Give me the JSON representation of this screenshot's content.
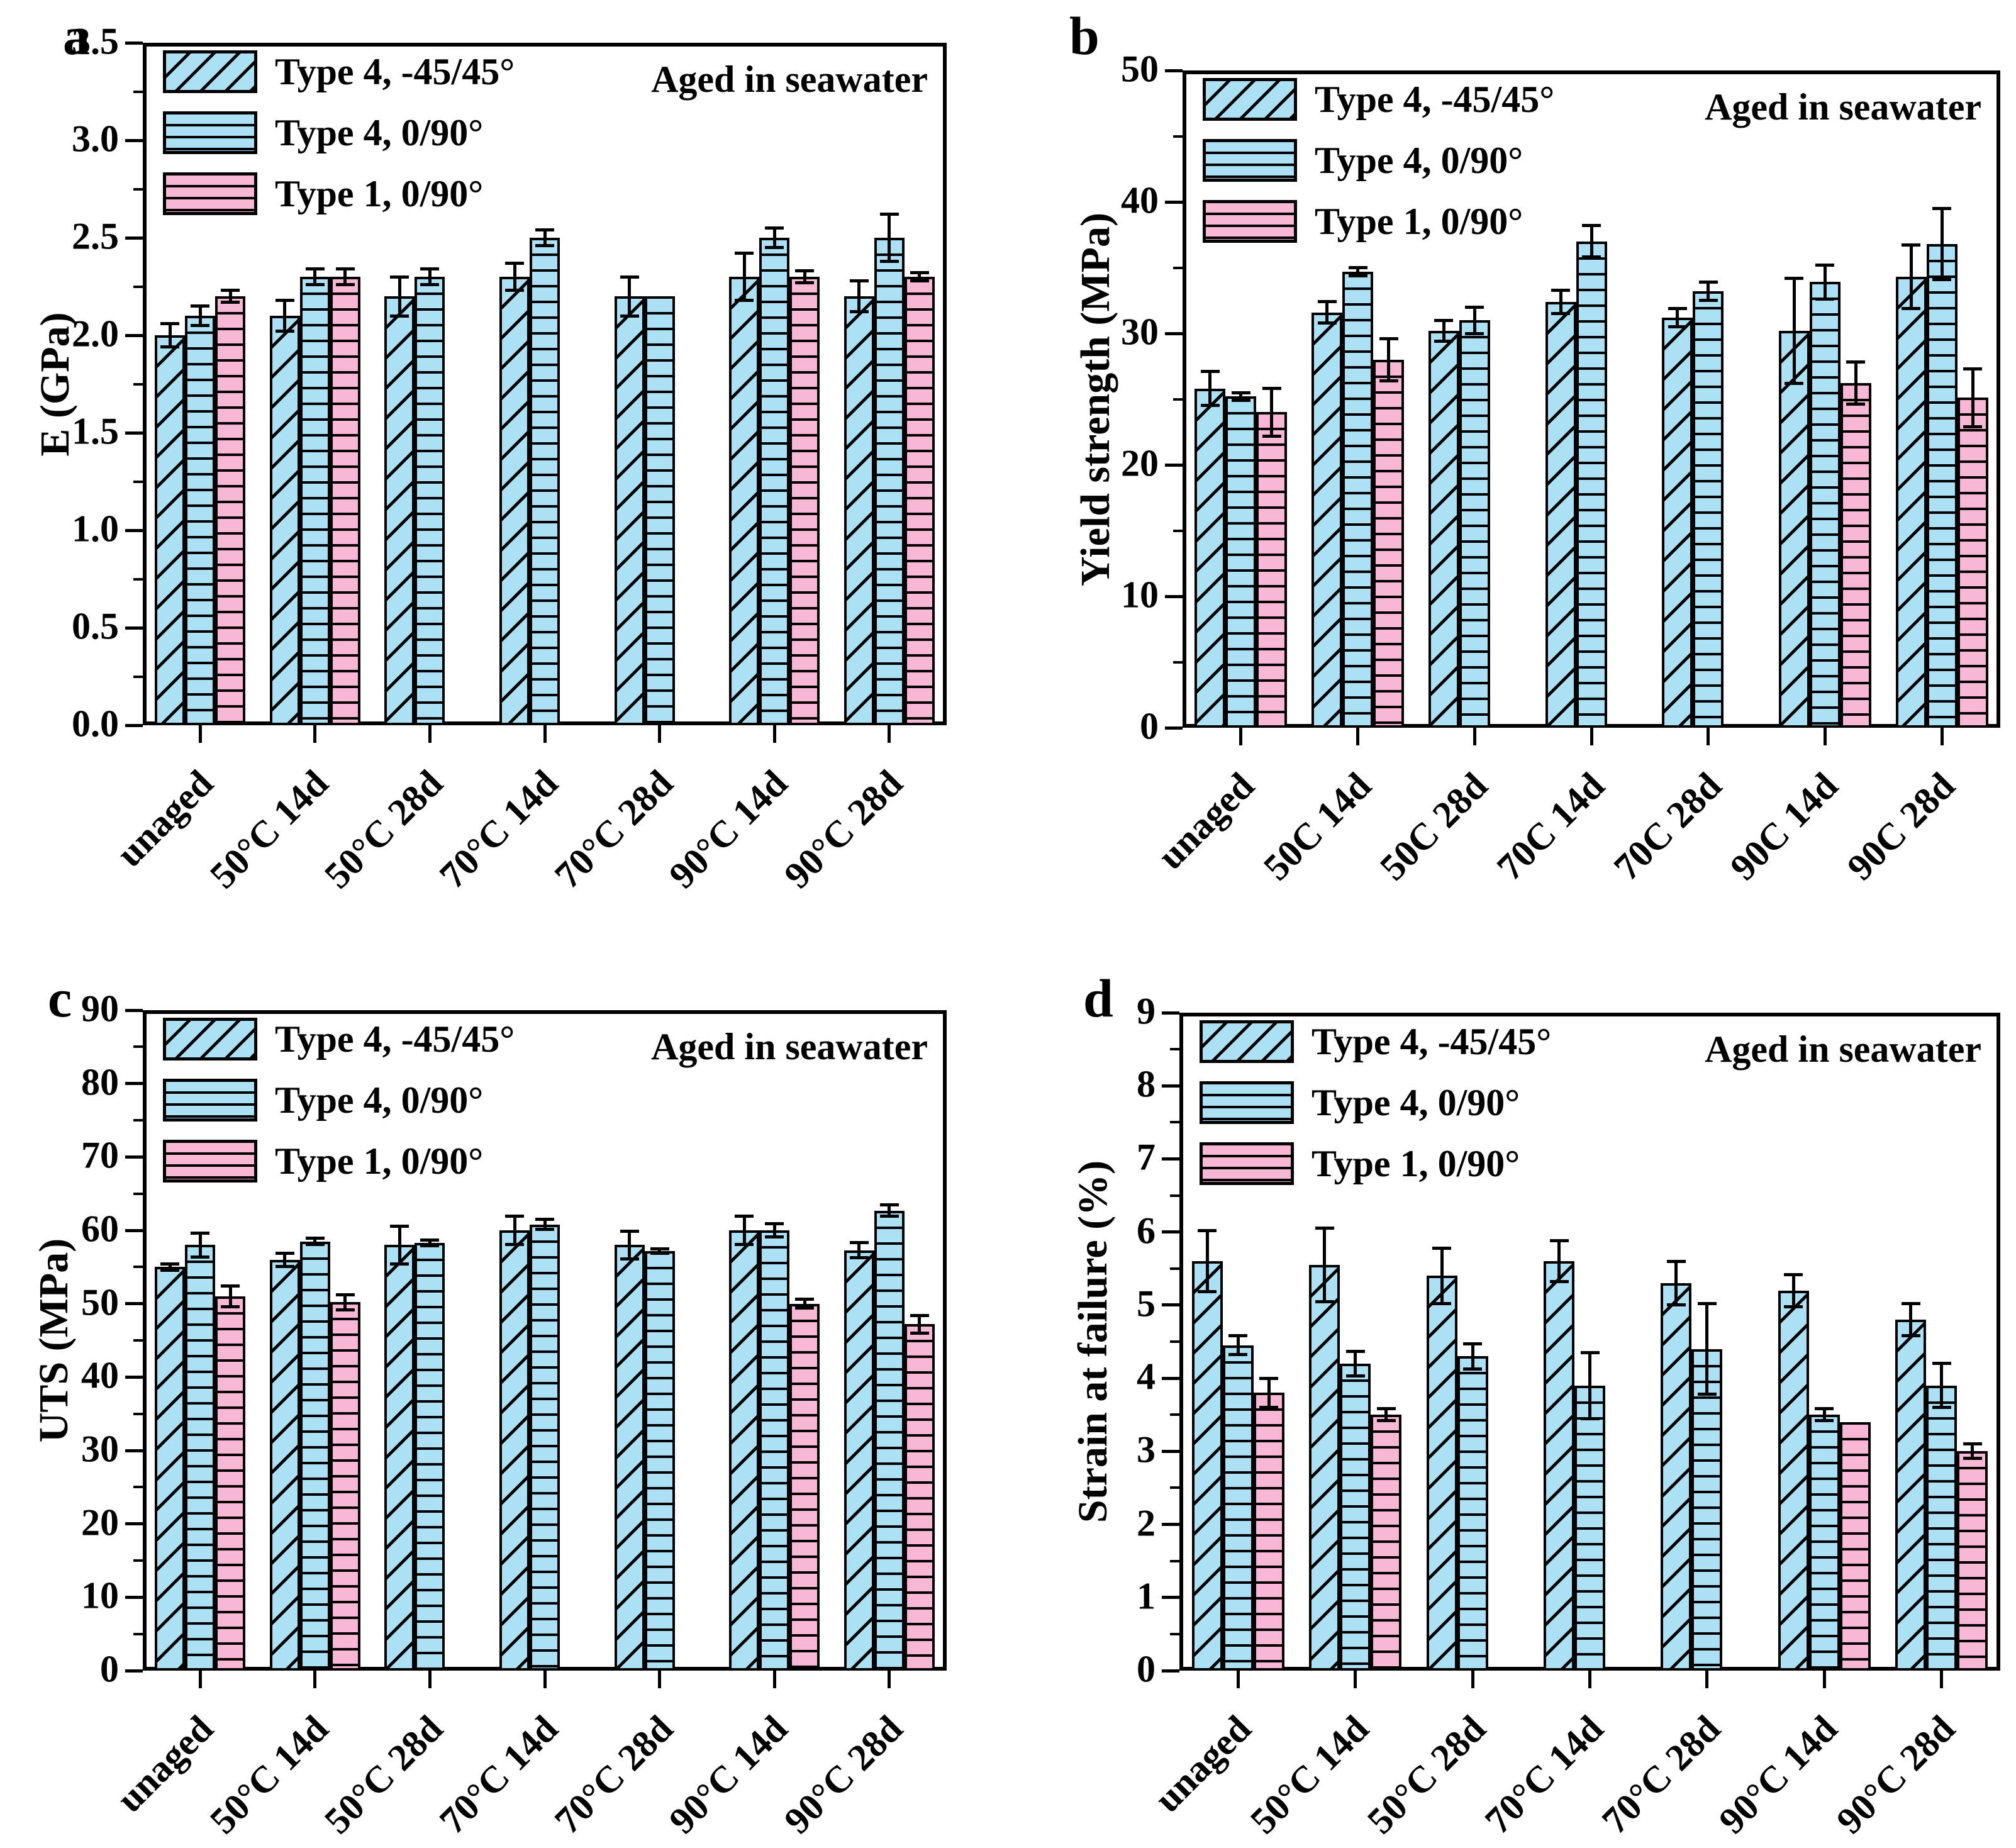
{
  "page": {
    "background": "#ffffff"
  },
  "colors": {
    "type4_blue": "#ACE0F4",
    "type1_pink": "#F8B7D4",
    "outline": "#000000"
  },
  "annotation_label": "Aged in seawater",
  "legend_labels": [
    "Type 4, -45/45°",
    "Type 4, 0/90°",
    "Type 1, 0/90°"
  ],
  "chart_data": [
    {
      "id": "a",
      "letter": "a",
      "type": "bar",
      "title": "",
      "xlabel": "",
      "ylabel": "E (GPa)",
      "ylim": [
        0,
        3.5
      ],
      "ytick_step": 0.5,
      "minor_step": 0.25,
      "ytick_decimals": 1,
      "grid": false,
      "legend_position": "top-left",
      "annotation": "Aged in seawater",
      "categories": [
        "unaged",
        "50°C 14d",
        "50°C 28d",
        "70°C 14d",
        "70°C 28d",
        "90°C 14d",
        "90°C 28d"
      ],
      "series": [
        {
          "name": "Type 4, -45/45°",
          "hatch": "diagonal",
          "fill": "blue",
          "values": [
            2.0,
            2.1,
            2.2,
            2.3,
            2.2,
            2.3,
            2.2
          ],
          "errors": [
            0.06,
            0.08,
            0.1,
            0.07,
            0.1,
            0.12,
            0.08
          ]
        },
        {
          "name": "Type 4, 0/90°",
          "hatch": "horizontal",
          "fill": "blue",
          "values": [
            2.1,
            2.3,
            2.3,
            2.5,
            2.2,
            2.5,
            2.5
          ],
          "errors": [
            0.05,
            0.04,
            0.04,
            0.04,
            0,
            0.05,
            0.12
          ]
        },
        {
          "name": "Type 1, 0/90°",
          "hatch": "horizontal",
          "fill": "pink",
          "values": [
            2.2,
            2.3,
            null,
            null,
            null,
            2.3,
            2.3
          ],
          "errors": [
            0.03,
            0.04,
            null,
            null,
            null,
            0.03,
            0.02
          ]
        }
      ]
    },
    {
      "id": "b",
      "letter": "b",
      "type": "bar",
      "title": "",
      "xlabel": "",
      "ylabel": "Yield strength (MPa)",
      "ylim": [
        0,
        50
      ],
      "ytick_step": 10,
      "minor_step": 5,
      "ytick_decimals": 0,
      "grid": false,
      "legend_position": "top-left",
      "annotation": "Aged in seawater",
      "categories": [
        "unaged",
        "50C 14d",
        "50C 28d",
        "70C 14d",
        "70C 28d",
        "90C 14d",
        "90C 28d"
      ],
      "series": [
        {
          "name": "Type 4, -45/45°",
          "hatch": "diagonal",
          "fill": "blue",
          "values": [
            25.8,
            31.6,
            30.2,
            32.4,
            31.2,
            30.2,
            34.3
          ],
          "errors": [
            1.3,
            0.8,
            0.8,
            0.9,
            0.7,
            4.0,
            2.4
          ]
        },
        {
          "name": "Type 4, 0/90°",
          "hatch": "horizontal",
          "fill": "blue",
          "values": [
            25.2,
            34.7,
            31.0,
            37.0,
            33.2,
            33.9,
            36.8
          ],
          "errors": [
            0.3,
            0.3,
            1.0,
            1.2,
            0.7,
            1.3,
            2.7
          ]
        },
        {
          "name": "Type 1, 0/90°",
          "hatch": "horizontal",
          "fill": "pink",
          "values": [
            24.0,
            28.0,
            null,
            null,
            null,
            26.2,
            25.1
          ],
          "errors": [
            1.8,
            1.6,
            null,
            null,
            null,
            1.6,
            2.2
          ]
        }
      ]
    },
    {
      "id": "c",
      "letter": "c",
      "type": "bar",
      "title": "",
      "xlabel": "",
      "ylabel": "UTS (MPa)",
      "ylim": [
        0,
        90
      ],
      "ytick_step": 10,
      "minor_step": 5,
      "ytick_decimals": 0,
      "grid": false,
      "legend_position": "top-left",
      "annotation": "Aged in seawater",
      "categories": [
        "unaged",
        "50°C 14d",
        "50°C 28d",
        "70°C 14d",
        "70°C 28d",
        "90°C 14d",
        "90°C 28d"
      ],
      "series": [
        {
          "name": "Type 4, -45/45°",
          "hatch": "diagonal",
          "fill": "blue",
          "values": [
            55.0,
            56.0,
            58.0,
            60.0,
            58.0,
            60.0,
            57.3
          ],
          "errors": [
            0.4,
            0.9,
            2.6,
            1.9,
            1.9,
            1.9,
            1.0
          ]
        },
        {
          "name": "Type 4, 0/90°",
          "hatch": "horizontal",
          "fill": "blue",
          "values": [
            58.0,
            58.5,
            58.3,
            60.8,
            57.2,
            60.0,
            62.7
          ],
          "errors": [
            1.6,
            0.4,
            0.4,
            0.7,
            0.3,
            0.9,
            0.8
          ]
        },
        {
          "name": "Type 1, 0/90°",
          "hatch": "horizontal",
          "fill": "pink",
          "values": [
            51.0,
            50.2,
            null,
            null,
            null,
            50.0,
            47.2
          ],
          "errors": [
            1.4,
            1.0,
            null,
            null,
            null,
            0.6,
            1.2
          ]
        }
      ]
    },
    {
      "id": "d",
      "letter": "d",
      "type": "bar",
      "title": "",
      "xlabel": "",
      "ylabel": "Strain at failure (%)",
      "ylim": [
        0,
        9
      ],
      "ytick_step": 1,
      "minor_step": 0.5,
      "ytick_decimals": 0,
      "grid": false,
      "legend_position": "top-left",
      "annotation": "Aged in seawater",
      "categories": [
        "unaged",
        "50°C 14d",
        "50°C 28d",
        "70°C 14d",
        "70°C 28d",
        "90°C 14d",
        "90°C 28d"
      ],
      "series": [
        {
          "name": "Type 4, -45/45°",
          "hatch": "diagonal",
          "fill": "blue",
          "values": [
            5.6,
            5.55,
            5.4,
            5.6,
            5.3,
            5.2,
            4.8
          ],
          "errors": [
            0.42,
            0.5,
            0.38,
            0.28,
            0.3,
            0.22,
            0.22
          ]
        },
        {
          "name": "Type 4, 0/90°",
          "hatch": "horizontal",
          "fill": "blue",
          "values": [
            4.45,
            4.2,
            4.3,
            3.9,
            4.4,
            3.5,
            3.9
          ],
          "errors": [
            0.13,
            0.17,
            0.17,
            0.45,
            0.62,
            0.08,
            0.3
          ]
        },
        {
          "name": "Type 1, 0/90°",
          "hatch": "horizontal",
          "fill": "pink",
          "values": [
            3.8,
            3.5,
            null,
            null,
            null,
            3.4,
            3.0
          ],
          "errors": [
            0.2,
            0.08,
            null,
            null,
            null,
            0,
            0.1
          ]
        }
      ]
    }
  ]
}
